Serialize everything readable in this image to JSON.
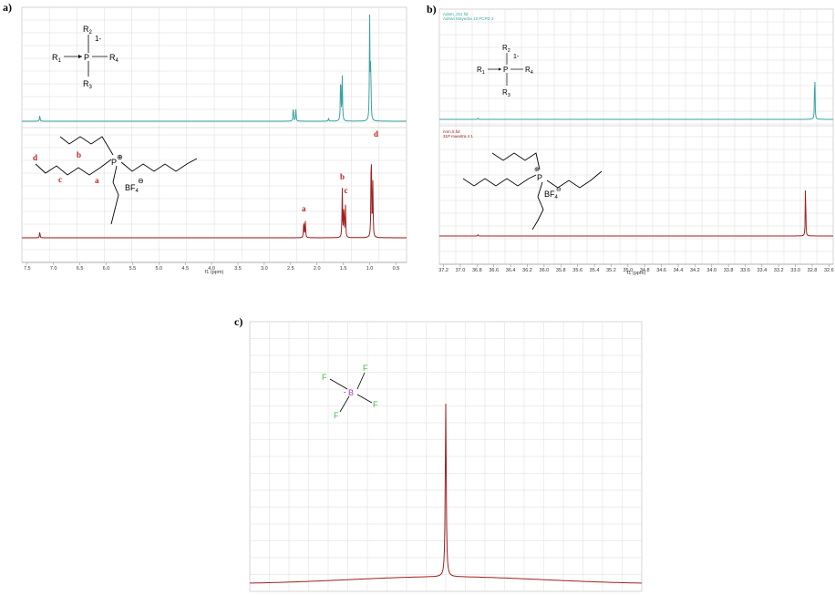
{
  "panels": [
    {
      "label": "a)"
    },
    {
      "label": "b)"
    },
    {
      "label": "c)"
    }
  ],
  "chart_data": [
    {
      "type": "line",
      "id": "a",
      "xlabel": "f1 (ppm)",
      "xlim": [
        7.6,
        0.3
      ],
      "xticks": [
        "7.5",
        "7.0",
        "6.5",
        "6.0",
        "5.5",
        "5.0",
        "4.5",
        "4.0",
        "3.5",
        "3.0",
        "2.5",
        "2.0",
        "1.5",
        "1.0",
        "0.5"
      ],
      "xtick_values": [
        7.5,
        7.0,
        6.5,
        6.0,
        5.5,
        5.0,
        4.5,
        4.0,
        3.5,
        3.0,
        2.5,
        2.0,
        1.5,
        1.0,
        0.5
      ],
      "grid": true,
      "series": [
        {
          "color": "#3aa3a3",
          "role": "top",
          "baseline": 0.0,
          "peaks": [
            {
              "x": 7.26,
              "h": 0.06
            },
            {
              "x": 2.45,
              "h": 0.15
            },
            {
              "x": 2.4,
              "h": 0.12
            },
            {
              "x": 1.78,
              "h": 0.03
            },
            {
              "x": 1.55,
              "h": 0.5
            },
            {
              "x": 1.52,
              "h": 0.42
            },
            {
              "x": 1.0,
              "h": 0.98
            },
            {
              "x": 0.98,
              "h": 0.6
            }
          ]
        },
        {
          "color": "#a02020",
          "role": "bottom",
          "baseline": 0.0,
          "peaks": [
            {
              "x": 7.26,
              "h": 0.06
            },
            {
              "x": 2.25,
              "h": 0.18
            },
            {
              "x": 2.22,
              "h": 0.15
            },
            {
              "x": 1.52,
              "h": 0.45
            },
            {
              "x": 1.49,
              "h": 0.32
            },
            {
              "x": 1.46,
              "h": 0.3
            },
            {
              "x": 0.97,
              "h": 0.95
            },
            {
              "x": 0.94,
              "h": 0.5
            }
          ]
        }
      ],
      "peak_labels": [
        {
          "text": "a",
          "x": 2.25
        },
        {
          "text": "b",
          "x": 1.52
        },
        {
          "text": "c",
          "x": 1.45
        },
        {
          "text": "d",
          "x": 0.88
        }
      ],
      "structure_top": {
        "r1": "R",
        "r1_sub": "1",
        "r2": "R",
        "r2_sub": "2",
        "r3": "R",
        "r3_sub": "3",
        "r4": "R",
        "r4_sub": "4",
        "center": "P",
        "charge": "1-"
      },
      "structure_bottom": {
        "center": "P",
        "plus": "⊕",
        "anion": "BF",
        "anion_sub": "4",
        "minus": "⊖",
        "labels": [
          "d",
          "b",
          "c",
          "a"
        ]
      }
    },
    {
      "type": "line",
      "id": "b",
      "xlabel": "f1 (ppm)",
      "xlim": [
        37.25,
        32.55
      ],
      "xticks": [
        "37.2",
        "37.0",
        "36.8",
        "36.6",
        "36.4",
        "36.2",
        "36.0",
        "35.8",
        "35.6",
        "35.4",
        "35.2",
        "35.0",
        "34.8",
        "34.6",
        "34.4",
        "34.2",
        "34.0",
        "33.8",
        "33.6",
        "33.4",
        "33.2",
        "33.0",
        "32.8",
        "32.6"
      ],
      "xtick_values": [
        37.2,
        37.0,
        36.8,
        36.6,
        36.4,
        36.2,
        36.0,
        35.8,
        35.6,
        35.4,
        35.2,
        35.0,
        34.8,
        34.6,
        34.4,
        34.2,
        34.0,
        33.8,
        33.6,
        33.4,
        33.2,
        33.0,
        32.8,
        32.6
      ],
      "grid": true,
      "top_notes": [
        "Adam_311.fid",
        "Adrian Mayedra 13 PCPD 2"
      ],
      "bottom_notes": [
        "nmn.5.fid",
        "31P muestra 4 1"
      ],
      "series": [
        {
          "color": "#3aa3a3",
          "role": "top",
          "peaks": [
            {
              "x": 36.79,
              "h": 0.02
            },
            {
              "x": 32.77,
              "h": 0.75
            }
          ]
        },
        {
          "color": "#a02020",
          "role": "bottom",
          "peaks": [
            {
              "x": 36.79,
              "h": 0.02
            },
            {
              "x": 32.88,
              "h": 0.7
            }
          ]
        }
      ],
      "structure_top": {
        "r1": "R",
        "r1_sub": "1",
        "r2": "R",
        "r2_sub": "2",
        "r3": "R",
        "r3_sub": "3",
        "r4": "R",
        "r4_sub": "4",
        "center": "P",
        "charge": "1-"
      },
      "structure_bottom": {
        "center": "P",
        "plus": "⊕",
        "anion": "BF",
        "anion_sub": "4",
        "minus": "⊖"
      }
    },
    {
      "type": "line",
      "id": "c",
      "grid": true,
      "xlim": [
        0,
        1
      ],
      "series": [
        {
          "color": "#a02020",
          "peaks": [
            {
              "x": 0.5,
              "h": 0.78
            }
          ]
        }
      ],
      "structure": {
        "center": "B",
        "charge": "-",
        "f": "F"
      }
    }
  ]
}
